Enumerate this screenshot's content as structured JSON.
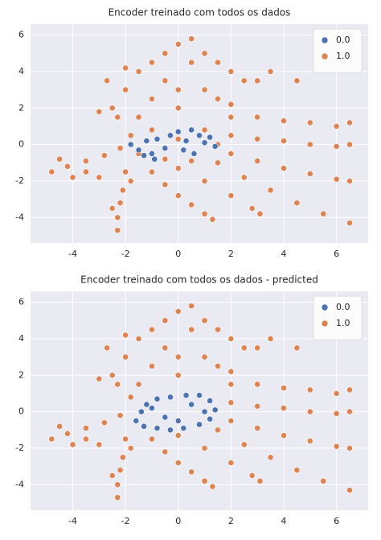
{
  "chart_data": [
    {
      "type": "scatter",
      "title": "Encoder treinado com todos os dados",
      "xlim": [
        -5.6,
        7.2
      ],
      "ylim": [
        -5.4,
        6.6
      ],
      "xticks": [
        -4,
        -2,
        0,
        2,
        4,
        6
      ],
      "yticks": [
        -4,
        -2,
        0,
        2,
        4,
        6
      ],
      "grid": true,
      "legend": "upper right",
      "series": [
        {
          "name": "0.0",
          "color": "#4c72b0",
          "x": [
            -1.8,
            -1.5,
            -1.2,
            -1,
            -0.8,
            -0.5,
            -0.3,
            0,
            0.3,
            0.5,
            0.8,
            1,
            1.2,
            1.4,
            -0.9,
            0.2,
            0.6,
            -1.3
          ],
          "y": [
            0,
            -0.3,
            0.2,
            -0.5,
            0.3,
            -0.2,
            0.5,
            0.7,
            0.2,
            0.8,
            0.5,
            0.1,
            0.4,
            -0.1,
            -0.8,
            -0.3,
            -0.5,
            -0.6
          ]
        },
        {
          "name": "1.0",
          "color": "#dd8452",
          "x": [
            -2.5,
            -2,
            -1.5,
            -1,
            -0.5,
            0,
            0.5,
            0.5,
            -0.5,
            -2,
            -2.7,
            1,
            1.5,
            2,
            2.5,
            3,
            -1,
            0,
            1,
            1.5,
            2,
            -2.3,
            -1.5,
            0,
            3.5,
            4.5,
            -3,
            -1.8,
            -1,
            0,
            1,
            1.5,
            -1.5,
            -0.5,
            0.5,
            -2.2,
            -2.8,
            -3.5,
            -4.2,
            -4.8,
            -4.5,
            -3.5,
            -3,
            -4,
            -2,
            -2.1,
            -2.2,
            -2.3,
            -2.3,
            -2.5,
            -1.8,
            -1,
            -0.5,
            0,
            0.5,
            1,
            1.3,
            0,
            1,
            2,
            2.8,
            3.1,
            1.5,
            2.5,
            3.5,
            4.5,
            5.5,
            6.5,
            2,
            3,
            4,
            5,
            6,
            6.5,
            2,
            3,
            4,
            5,
            6,
            6.5,
            2,
            3,
            4,
            5,
            6,
            6.5
          ],
          "y": [
            2,
            3,
            4,
            4.5,
            5,
            5.5,
            5.8,
            4.5,
            3.5,
            4.2,
            3.5,
            5,
            4.5,
            4,
            3.5,
            3.5,
            2.5,
            3,
            3,
            2.5,
            2.2,
            1.5,
            1.5,
            2,
            4,
            3.5,
            1.8,
            0.5,
            0.8,
            0.3,
            0.8,
            0,
            -0.5,
            -0.8,
            -0.9,
            -0.2,
            -0.6,
            -0.9,
            -1.2,
            -1.5,
            -0.8,
            -1.5,
            -1.8,
            -1.8,
            -1.5,
            -2.5,
            -3.2,
            -4,
            -4.7,
            -3.5,
            -2,
            -1.5,
            -2.2,
            -2.8,
            -3.3,
            -3.8,
            -4.1,
            -1.3,
            -2,
            -2.8,
            -3.5,
            -3.8,
            -1,
            -1.8,
            -2.5,
            -3.2,
            -3.8,
            -4.3,
            -0.5,
            -0.9,
            -1.3,
            -1.6,
            -1.9,
            -2,
            0.5,
            0.3,
            0.2,
            0,
            -0.1,
            0,
            1.5,
            1.5,
            1.3,
            1.2,
            1,
            1.2
          ]
        }
      ]
    },
    {
      "type": "scatter",
      "title": "Encoder treinado com todos os dados - predicted",
      "xlim": [
        -5.6,
        7.2
      ],
      "ylim": [
        -5.4,
        6.6
      ],
      "xticks": [
        -4,
        -2,
        0,
        2,
        4,
        6
      ],
      "yticks": [
        -4,
        -2,
        0,
        2,
        4,
        6
      ],
      "grid": true,
      "legend": "upper right",
      "series": [
        {
          "name": "0.0",
          "color": "#4c72b0",
          "x": [
            -1.6,
            -1.4,
            -1.2,
            -0.8,
            -0.3,
            0.3,
            0.8,
            1.2,
            1.4,
            1.2,
            0.8,
            0.2,
            -0.3,
            -0.8,
            -1.3,
            -0.5,
            0.5,
            -1,
            1,
            0
          ],
          "y": [
            -0.5,
            0,
            0.4,
            0.7,
            0.8,
            0.9,
            0.9,
            0.6,
            0.1,
            -0.4,
            -0.7,
            -0.9,
            -1,
            -0.9,
            -0.8,
            -0.3,
            0.4,
            0.2,
            0,
            -0.5
          ]
        },
        {
          "name": "1.0",
          "color": "#dd8452",
          "x": [
            -2.5,
            -2,
            -1.5,
            -1,
            -0.5,
            0,
            0.5,
            0.5,
            -0.5,
            -2,
            -2.7,
            1,
            1.5,
            2,
            2.5,
            3,
            -1,
            0,
            1,
            1.5,
            2,
            -2.3,
            -1.5,
            0,
            3.5,
            4.5,
            -3,
            -1.8,
            -2.2,
            -2.8,
            -3.5,
            -4.2,
            -4.8,
            -4.5,
            -3.5,
            -3,
            -4,
            -2,
            -2.1,
            -2.2,
            -2.3,
            -2.3,
            -2.5,
            -1.8,
            -1,
            -0.5,
            0,
            0.5,
            1,
            1.3,
            0,
            1,
            2,
            2.8,
            3.1,
            1.5,
            2.5,
            3.5,
            4.5,
            5.5,
            6.5,
            2,
            3,
            4,
            5,
            6,
            6.5,
            2,
            3,
            4,
            5,
            6,
            6.5,
            2,
            3,
            4,
            5,
            6,
            6.5
          ],
          "y": [
            2,
            3,
            4,
            4.5,
            5,
            5.5,
            5.8,
            4.5,
            3.5,
            4.2,
            3.5,
            5,
            4.5,
            4,
            3.5,
            3.5,
            2.5,
            3,
            3,
            2.5,
            2.2,
            1.5,
            1.5,
            2,
            4,
            3.5,
            1.8,
            0.8,
            -0.2,
            -0.6,
            -0.9,
            -1.2,
            -1.5,
            -0.8,
            -1.5,
            -1.8,
            -1.8,
            -1.5,
            -2.5,
            -3.2,
            -4,
            -4.7,
            -3.5,
            -2,
            -1.5,
            -2.2,
            -2.8,
            -3.3,
            -3.8,
            -4.1,
            -1.3,
            -2,
            -2.8,
            -3.5,
            -3.8,
            -1,
            -1.8,
            -2.5,
            -3.2,
            -3.8,
            -4.3,
            -0.5,
            -0.9,
            -1.3,
            -1.6,
            -1.9,
            -2,
            0.5,
            0.3,
            0.2,
            0,
            -0.1,
            0,
            1.5,
            1.5,
            1.3,
            1.2,
            1,
            1.2
          ]
        }
      ]
    }
  ]
}
